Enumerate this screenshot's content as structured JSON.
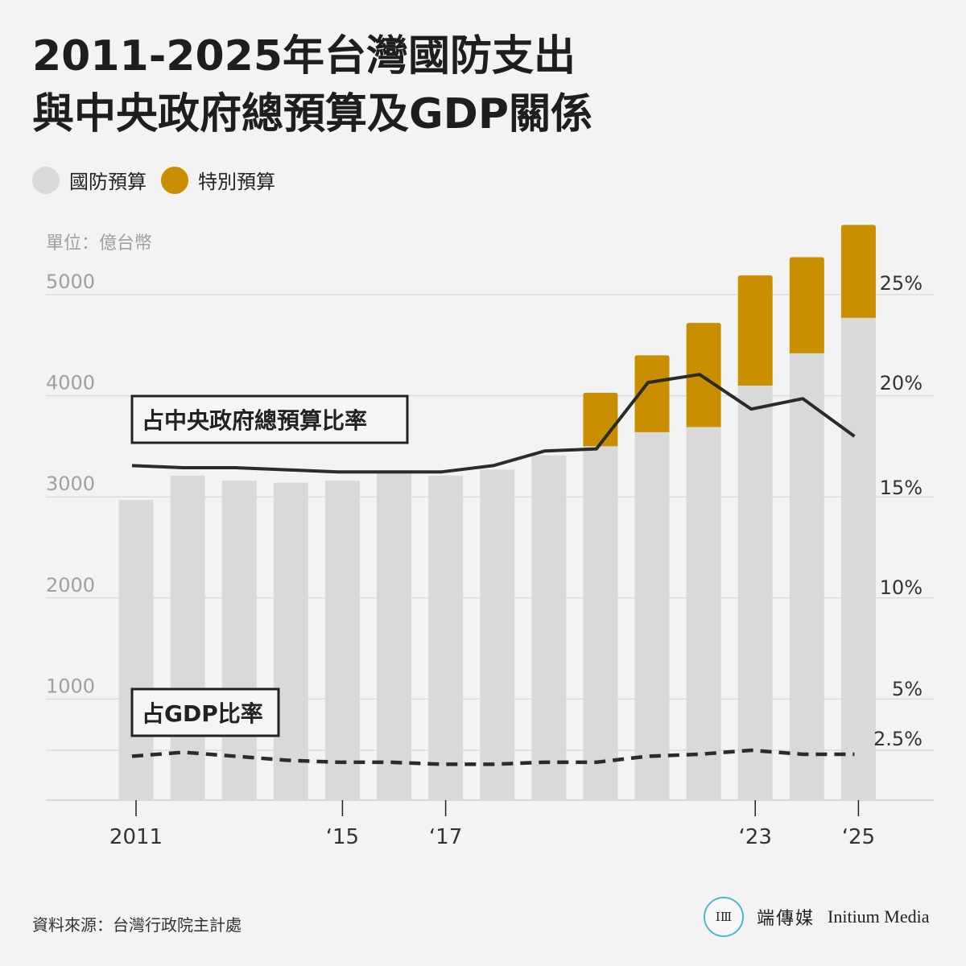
{
  "title": {
    "line1": "2011-2025年台灣國防支出",
    "line2": "與中央政府總預算及GDP關係"
  },
  "legend": [
    {
      "label": "國防預算",
      "color": "#d9d9d9"
    },
    {
      "label": "特別預算",
      "color": "#c98f00"
    }
  ],
  "colors": {
    "regular_budget": "#d9d9d9",
    "special_budget": "#c98f00",
    "line": "#2b2b2b",
    "grid": "#dcdcdc",
    "axis_text": "#a0a0a0"
  },
  "chart_data": {
    "type": "bar",
    "unit_label": "單位：億台幣",
    "years": [
      2011,
      2012,
      2013,
      2014,
      2015,
      2016,
      2017,
      2018,
      2019,
      2020,
      2021,
      2022,
      2023,
      2024,
      2025
    ],
    "x_tick_labels": [
      {
        "year": 2011,
        "label": "2011"
      },
      {
        "year": 2015,
        "label": "‘15"
      },
      {
        "year": 2017,
        "label": "‘17"
      },
      {
        "year": 2023,
        "label": "‘23"
      },
      {
        "year": 2025,
        "label": "‘25"
      }
    ],
    "y_left": {
      "ticks": [
        1000,
        2000,
        3000,
        4000,
        5000
      ],
      "ylim": [
        0,
        5060
      ]
    },
    "y_right": {
      "ticks": [
        "25%",
        "20%",
        "15%",
        "10%",
        "5%",
        "2.5%"
      ]
    },
    "series": [
      {
        "name": "國防預算",
        "values": [
          2970,
          3210,
          3160,
          3140,
          3160,
          3230,
          3210,
          3270,
          3410,
          3500,
          3640,
          3690,
          4100,
          4420,
          4770
        ]
      },
      {
        "name": "特別預算",
        "values": [
          0,
          0,
          0,
          0,
          0,
          0,
          0,
          0,
          0,
          530,
          760,
          1030,
          1090,
          950,
          920
        ]
      }
    ],
    "lines": [
      {
        "name": "占中央政府總預算比率",
        "style": "solid",
        "values": [
          16.6,
          16.5,
          16.5,
          16.4,
          16.3,
          16.3,
          16.3,
          16.6,
          17.3,
          17.4,
          20.6,
          21.0,
          19.3,
          19.8,
          18.0
        ]
      },
      {
        "name": "占GDP比率",
        "style": "dashed",
        "values": [
          2.2,
          2.4,
          2.2,
          2.0,
          1.9,
          1.9,
          1.8,
          1.8,
          1.9,
          1.9,
          2.2,
          2.3,
          2.5,
          2.3,
          2.3
        ]
      }
    ],
    "line_labels": [
      "占中央政府總預算比率",
      "占GDP比率"
    ]
  },
  "source": "資料來源：台灣行政院主計處",
  "logo": {
    "mark": "IⅢ",
    "cn": "端傳媒",
    "en": "Initium Media"
  }
}
